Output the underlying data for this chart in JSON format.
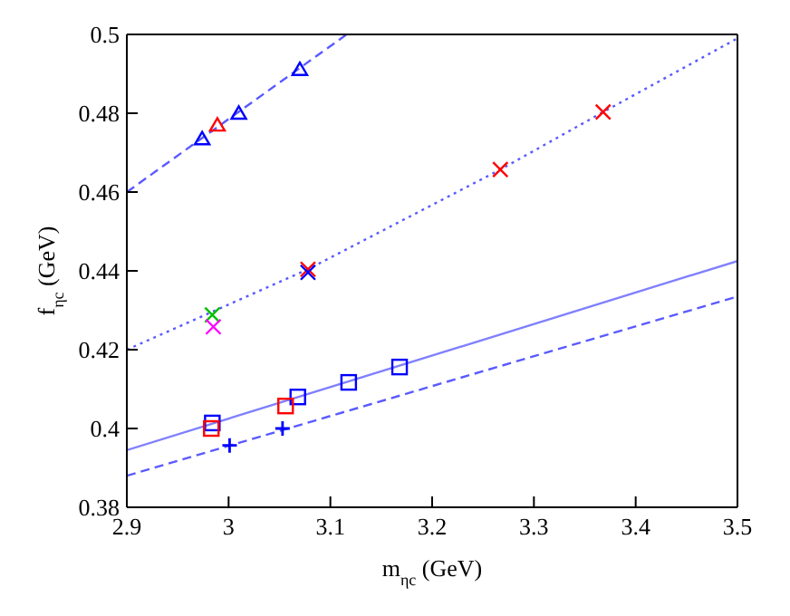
{
  "chart_data": {
    "type": "scatter",
    "xlabel": "m$_{ηc}$ (GeV)",
    "ylabel": "f$_{ηc}$ (GeV)",
    "xlim": [
      2.9,
      3.5
    ],
    "ylim": [
      0.38,
      0.5
    ],
    "xticks": [
      2.9,
      3,
      3.1,
      3.2,
      3.3,
      3.4,
      3.5
    ],
    "yticks": [
      0.38,
      0.4,
      0.42,
      0.44,
      0.46,
      0.48,
      0.5
    ],
    "legend": false,
    "series": [
      {
        "type": "line",
        "color": "#5a5aff",
        "line_style": "dashed",
        "marker": "none",
        "x": [
          2.9,
          3.116
        ],
        "values": [
          0.46,
          0.5
        ]
      },
      {
        "type": "line",
        "color": "#5a5aff",
        "line_style": "dotted",
        "marker": "none",
        "x": [
          2.9,
          3.078,
          3.267,
          3.368,
          3.5
        ],
        "values": [
          0.42,
          0.4404,
          0.4657,
          0.4803,
          0.499
        ]
      },
      {
        "type": "line",
        "color": "#8080ff",
        "line_style": "solid",
        "marker": "none",
        "x": [
          2.9,
          3.5
        ],
        "values": [
          0.3945,
          0.4425
        ]
      },
      {
        "type": "line",
        "color": "#5a5aff",
        "line_style": "dashed",
        "marker": "none",
        "x": [
          2.9,
          3.5
        ],
        "values": [
          0.388,
          0.4335
        ]
      },
      {
        "color": "#0000ff",
        "marker": "triangle",
        "x": [
          2.974,
          3.01,
          3.07
        ],
        "values": [
          0.4734,
          0.4799,
          0.491
        ]
      },
      {
        "color": "#ff0000",
        "marker": "triangle",
        "x": [
          2.989
        ],
        "values": [
          0.4769
        ]
      },
      {
        "color": "#ff0000",
        "marker": "x",
        "x": [
          3.078,
          3.267,
          3.368
        ],
        "values": [
          0.4404,
          0.4657,
          0.4803
        ]
      },
      {
        "color": "#0000ff",
        "marker": "x",
        "x": [
          3.078
        ],
        "values": [
          0.4396
        ]
      },
      {
        "color": "#00c000",
        "marker": "x",
        "x": [
          2.984
        ],
        "values": [
          0.4288
        ]
      },
      {
        "color": "#ff00ff",
        "marker": "x",
        "x": [
          2.985
        ],
        "values": [
          0.4258
        ]
      },
      {
        "color": "#0000ff",
        "marker": "square",
        "x": [
          2.984,
          3.068,
          3.118,
          3.168
        ],
        "values": [
          0.4014,
          0.408,
          0.4117,
          0.4156
        ]
      },
      {
        "color": "#ff0000",
        "marker": "square",
        "x": [
          2.983,
          3.056
        ],
        "values": [
          0.4,
          0.4057
        ]
      },
      {
        "color": "#0000ff",
        "marker": "cross",
        "x": [
          3.001,
          3.053
        ],
        "values": [
          0.3957,
          0.4
        ]
      }
    ]
  }
}
